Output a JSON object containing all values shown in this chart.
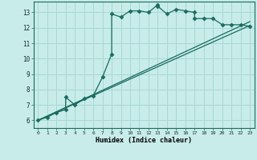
{
  "title": "",
  "xlabel": "Humidex (Indice chaleur)",
  "bg_color": "#c8ece9",
  "grid_color": "#a8d8d4",
  "line_color": "#1a6b60",
  "xlim": [
    -0.5,
    23.5
  ],
  "ylim": [
    5.5,
    13.7
  ],
  "xticks": [
    0,
    1,
    2,
    3,
    4,
    5,
    6,
    7,
    8,
    9,
    10,
    11,
    12,
    13,
    14,
    15,
    16,
    17,
    18,
    19,
    20,
    21,
    22,
    23
  ],
  "yticks": [
    6,
    7,
    8,
    9,
    10,
    11,
    12,
    13
  ],
  "curve1_x": [
    0,
    1,
    2,
    3,
    3,
    4,
    5,
    6,
    7,
    8,
    8,
    9,
    10,
    11,
    12,
    13,
    13,
    14,
    15,
    16,
    17,
    17,
    18,
    19,
    20,
    21,
    22,
    23
  ],
  "curve1_y": [
    6.0,
    6.2,
    6.5,
    6.7,
    7.5,
    7.0,
    7.4,
    7.6,
    8.8,
    10.3,
    12.9,
    12.7,
    13.1,
    13.1,
    13.0,
    13.5,
    13.4,
    12.9,
    13.2,
    13.1,
    13.0,
    12.6,
    12.6,
    12.6,
    12.2,
    12.2,
    12.2,
    12.1
  ],
  "line2_x": [
    0,
    23
  ],
  "line2_y": [
    6.0,
    12.15
  ],
  "line3_x": [
    0,
    23
  ],
  "line3_y": [
    6.0,
    12.4
  ]
}
